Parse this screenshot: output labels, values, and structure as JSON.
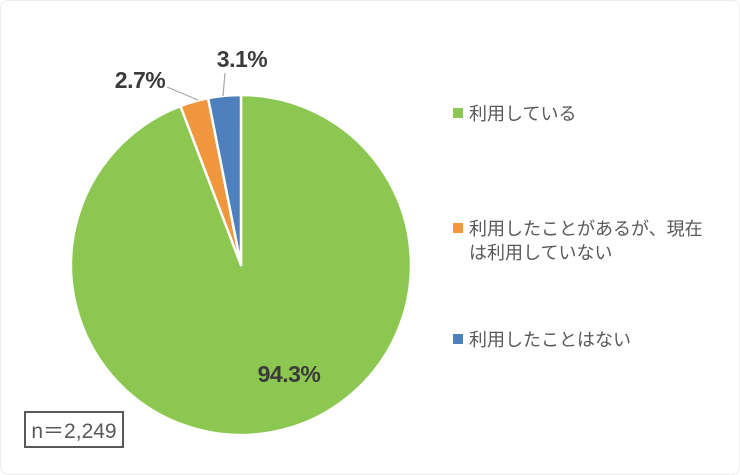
{
  "chart_data": {
    "type": "pie",
    "start_angle_deg": 0,
    "direction": "clockwise",
    "legend_position": "right",
    "slices": [
      {
        "label": "利用している",
        "value": 94.3,
        "display": "94.3%",
        "color": "#8CC751"
      },
      {
        "label": "利用したことがあるが、現在は利用していない",
        "value": 2.7,
        "display": "2.7%",
        "color": "#F0963C"
      },
      {
        "label": "利用したことはない",
        "value": 3.1,
        "display": "3.1%",
        "color": "#4D80BC"
      }
    ],
    "sample_size_label": "n＝2,249"
  },
  "style_colors": {
    "slice_border": "#ffffff",
    "data_label_text": "#3b3b3b",
    "legend_text": "#595959",
    "leader_line": "#a6a6a6",
    "n_box_border": "#595959"
  }
}
